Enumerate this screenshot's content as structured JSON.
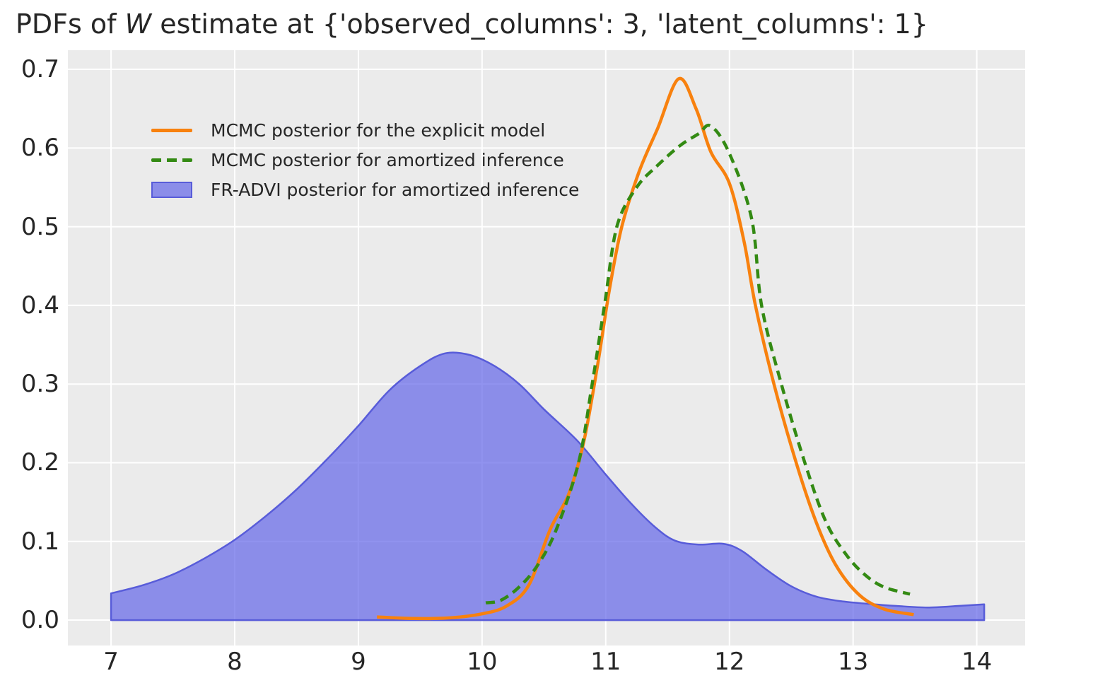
{
  "title": {
    "prefix": "PDFs of ",
    "math_variable": "W",
    "suffix": " estimate at {'observed_columns': 3, 'latent_columns': 1}",
    "full": "PDFs of W estimate at {'observed_columns': 3, 'latent_columns': 1}"
  },
  "colors": {
    "figure_background": "#ffffff",
    "plot_background": "#ebebeb",
    "grid": "#ffffff",
    "text": "#262626",
    "orange_line": "#f8810e",
    "green_line": "#338a13",
    "blue_fill": "rgba(98,101,232,0.70)",
    "blue_edge": "#585cd9"
  },
  "chart_data": {
    "type": "line",
    "subtype": "kde-pdf-comparison",
    "title": "PDFs of W estimate at {'observed_columns': 3, 'latent_columns': 1}",
    "xlabel": "",
    "ylabel": "",
    "xlim": [
      6.651,
      14.391
    ],
    "ylim": [
      -0.0323,
      0.7243
    ],
    "grid": "on",
    "legend_position": "upper left",
    "x_ticks": [
      {
        "value": 7,
        "label": "7"
      },
      {
        "value": 8,
        "label": "8"
      },
      {
        "value": 9,
        "label": "9"
      },
      {
        "value": 10,
        "label": "10"
      },
      {
        "value": 11,
        "label": "11"
      },
      {
        "value": 12,
        "label": "12"
      },
      {
        "value": 13,
        "label": "13"
      },
      {
        "value": 14,
        "label": "14"
      }
    ],
    "y_ticks": [
      {
        "value": 0.0,
        "label": "0.0"
      },
      {
        "value": 0.1,
        "label": "0.1"
      },
      {
        "value": 0.2,
        "label": "0.2"
      },
      {
        "value": 0.3,
        "label": "0.3"
      },
      {
        "value": 0.4,
        "label": "0.4"
      },
      {
        "value": 0.5,
        "label": "0.5"
      },
      {
        "value": 0.6,
        "label": "0.6"
      },
      {
        "value": 0.7,
        "label": "0.7"
      }
    ],
    "series": [
      {
        "id": "fradvi_amortized",
        "label": "FR-ADVI posterior for amortized inference",
        "type": "area",
        "fill_color": "rgba(98,101,232,0.70)",
        "edge_color": "#585cd9",
        "edge_width": 2.5,
        "peak": {
          "x": 9.7,
          "y": 0.34
        },
        "points": [
          [
            7.0,
            0.034
          ],
          [
            7.25,
            0.044
          ],
          [
            7.5,
            0.058
          ],
          [
            7.75,
            0.078
          ],
          [
            8.0,
            0.102
          ],
          [
            8.25,
            0.132
          ],
          [
            8.5,
            0.166
          ],
          [
            8.75,
            0.205
          ],
          [
            9.0,
            0.247
          ],
          [
            9.25,
            0.292
          ],
          [
            9.5,
            0.323
          ],
          [
            9.7,
            0.339
          ],
          [
            9.9,
            0.337
          ],
          [
            10.1,
            0.323
          ],
          [
            10.3,
            0.3
          ],
          [
            10.5,
            0.268
          ],
          [
            10.77,
            0.228
          ],
          [
            11.0,
            0.185
          ],
          [
            11.2,
            0.149
          ],
          [
            11.4,
            0.118
          ],
          [
            11.56,
            0.101
          ],
          [
            11.75,
            0.096
          ],
          [
            11.95,
            0.097
          ],
          [
            12.1,
            0.088
          ],
          [
            12.3,
            0.064
          ],
          [
            12.5,
            0.043
          ],
          [
            12.7,
            0.03
          ],
          [
            12.9,
            0.024
          ],
          [
            13.1,
            0.021
          ],
          [
            13.35,
            0.018
          ],
          [
            13.6,
            0.016
          ],
          [
            13.85,
            0.018
          ],
          [
            14.06,
            0.02
          ]
        ]
      },
      {
        "id": "mcmc_explicit",
        "label": "MCMC posterior for the explicit model",
        "type": "line",
        "color": "#f8810e",
        "linestyle": "solid",
        "line_width": 4.5,
        "peak": {
          "x": 11.59,
          "y": 0.688
        },
        "points": [
          [
            9.15,
            0.004
          ],
          [
            9.45,
            0.002
          ],
          [
            9.75,
            0.003
          ],
          [
            10.0,
            0.008
          ],
          [
            10.2,
            0.018
          ],
          [
            10.38,
            0.045
          ],
          [
            10.55,
            0.115
          ],
          [
            10.7,
            0.16
          ],
          [
            10.82,
            0.225
          ],
          [
            10.93,
            0.32
          ],
          [
            11.03,
            0.42
          ],
          [
            11.13,
            0.5
          ],
          [
            11.27,
            0.57
          ],
          [
            11.42,
            0.625
          ],
          [
            11.59,
            0.688
          ],
          [
            11.73,
            0.65
          ],
          [
            11.85,
            0.595
          ],
          [
            12.0,
            0.555
          ],
          [
            12.12,
            0.48
          ],
          [
            12.21,
            0.4
          ],
          [
            12.36,
            0.3
          ],
          [
            12.54,
            0.2
          ],
          [
            12.7,
            0.125
          ],
          [
            12.86,
            0.07
          ],
          [
            13.05,
            0.032
          ],
          [
            13.25,
            0.014
          ],
          [
            13.49,
            0.007
          ]
        ]
      },
      {
        "id": "mcmc_amortized",
        "label": "MCMC posterior for amortized inference",
        "type": "line",
        "color": "#338a13",
        "linestyle": "dashed",
        "dash_pattern": [
          13,
          8
        ],
        "line_width": 4.5,
        "peak": {
          "x": 11.85,
          "y": 0.628
        },
        "points": [
          [
            10.03,
            0.022
          ],
          [
            10.15,
            0.025
          ],
          [
            10.3,
            0.042
          ],
          [
            10.45,
            0.07
          ],
          [
            10.6,
            0.115
          ],
          [
            10.78,
            0.2
          ],
          [
            10.89,
            0.3
          ],
          [
            10.99,
            0.4
          ],
          [
            11.09,
            0.5
          ],
          [
            11.25,
            0.55
          ],
          [
            11.42,
            0.578
          ],
          [
            11.6,
            0.603
          ],
          [
            11.75,
            0.618
          ],
          [
            11.85,
            0.628
          ],
          [
            12.0,
            0.593
          ],
          [
            12.18,
            0.51
          ],
          [
            12.26,
            0.4
          ],
          [
            12.42,
            0.3
          ],
          [
            12.61,
            0.2
          ],
          [
            12.78,
            0.125
          ],
          [
            12.95,
            0.082
          ],
          [
            13.1,
            0.057
          ],
          [
            13.25,
            0.042
          ],
          [
            13.46,
            0.033
          ]
        ]
      }
    ]
  },
  "legend": {
    "items": [
      {
        "series_id": "mcmc_explicit",
        "label": "MCMC posterior for the explicit model"
      },
      {
        "series_id": "mcmc_amortized",
        "label": "MCMC posterior for amortized inference"
      },
      {
        "series_id": "fradvi_amortized",
        "label": "FR-ADVI posterior for amortized inference"
      }
    ]
  }
}
